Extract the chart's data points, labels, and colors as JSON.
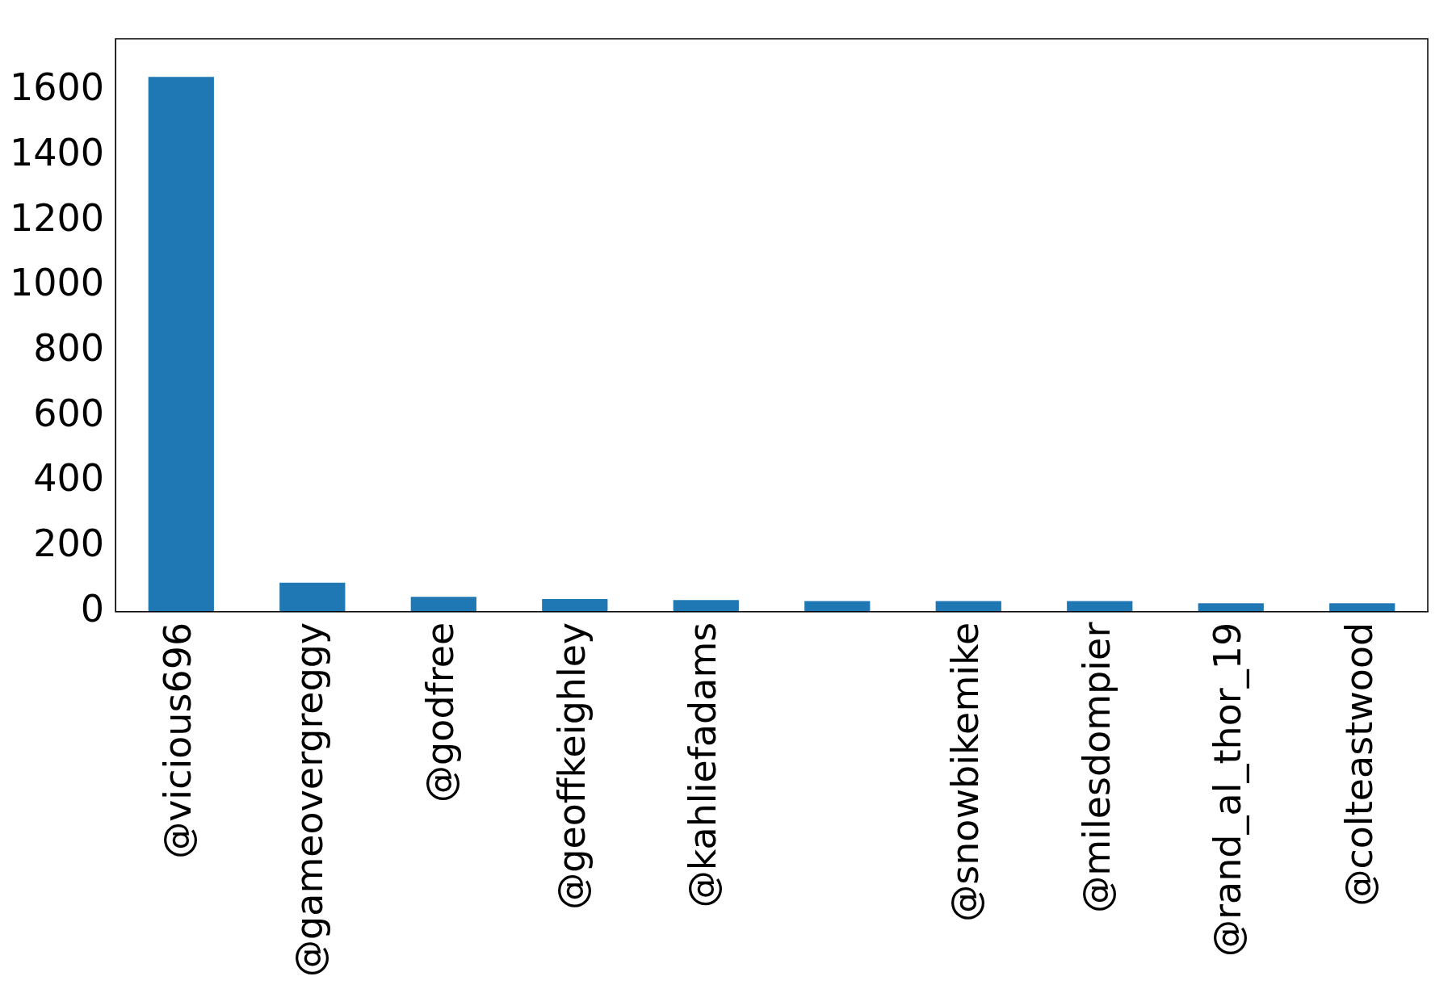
{
  "chart_data": {
    "type": "bar",
    "categories": [
      "@vicious696",
      "@gameovergreggy",
      "@godfree",
      "@geoffkeighley",
      "@kahliefadams",
      null,
      "@snowbikemike",
      "@milesdompier",
      "@rand_al_thor_19",
      "@colteastwood"
    ],
    "values": [
      1643,
      89,
      46,
      39,
      36,
      33,
      33,
      33,
      26,
      26
    ],
    "color": "#1f77b4",
    "ylim": [
      0,
      1760
    ],
    "yticks": [
      0,
      200,
      400,
      600,
      800,
      1000,
      1200,
      1400,
      1600
    ],
    "grid": false,
    "legend": false
  }
}
